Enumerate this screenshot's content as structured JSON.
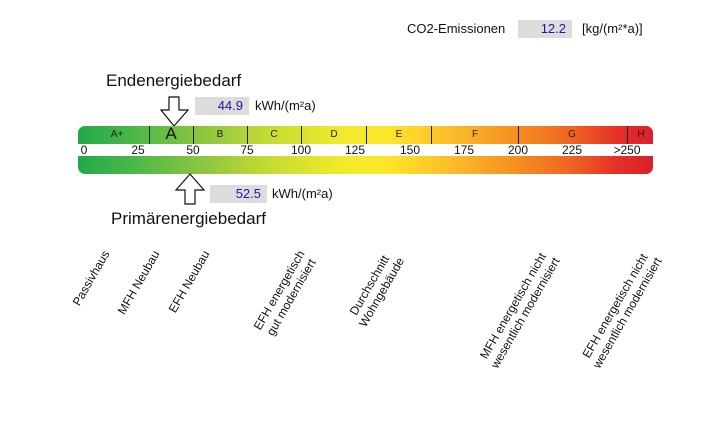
{
  "co2": {
    "label": "CO2-Emissionen",
    "value": "12.2",
    "unit": "[kg/(m²*a)]"
  },
  "endenergie": {
    "heading": "Endenergiebedarf",
    "value": "44.9",
    "unit": "kWh/(m²a)",
    "scale_value": 44.9
  },
  "primaerenergie": {
    "heading": "Primärenergiebedarf",
    "value": "52.5",
    "unit": "kWh/(m²a)",
    "scale_value": 52.5
  },
  "scale": {
    "classes": [
      "A+",
      "A",
      "B",
      "C",
      "D",
      "E",
      "F",
      "G",
      "H"
    ],
    "class_bounds": [
      0,
      30,
      50,
      75,
      100,
      130,
      160,
      200,
      250
    ],
    "ticks": [
      "0",
      "25",
      "50",
      "75",
      "100",
      "125",
      "150",
      "175",
      "200",
      "225",
      ">250"
    ],
    "colors": {
      "green": "#23a94a",
      "yellow": "#ffe529",
      "red": "#d9202a"
    }
  },
  "reference_labels": [
    [
      "Passivhaus"
    ],
    [
      "MFH Neubau"
    ],
    [
      "EFH Neubau"
    ],
    [
      "EFH energetisch",
      "gut modernisiert"
    ],
    [
      "Durchschnitt",
      "Wohngebäude"
    ],
    [
      "MFH energetisch nicht",
      "wesentlich modernisiert"
    ],
    [
      "EFH energetisch nicht",
      "wesentlich modernisiert"
    ]
  ]
}
